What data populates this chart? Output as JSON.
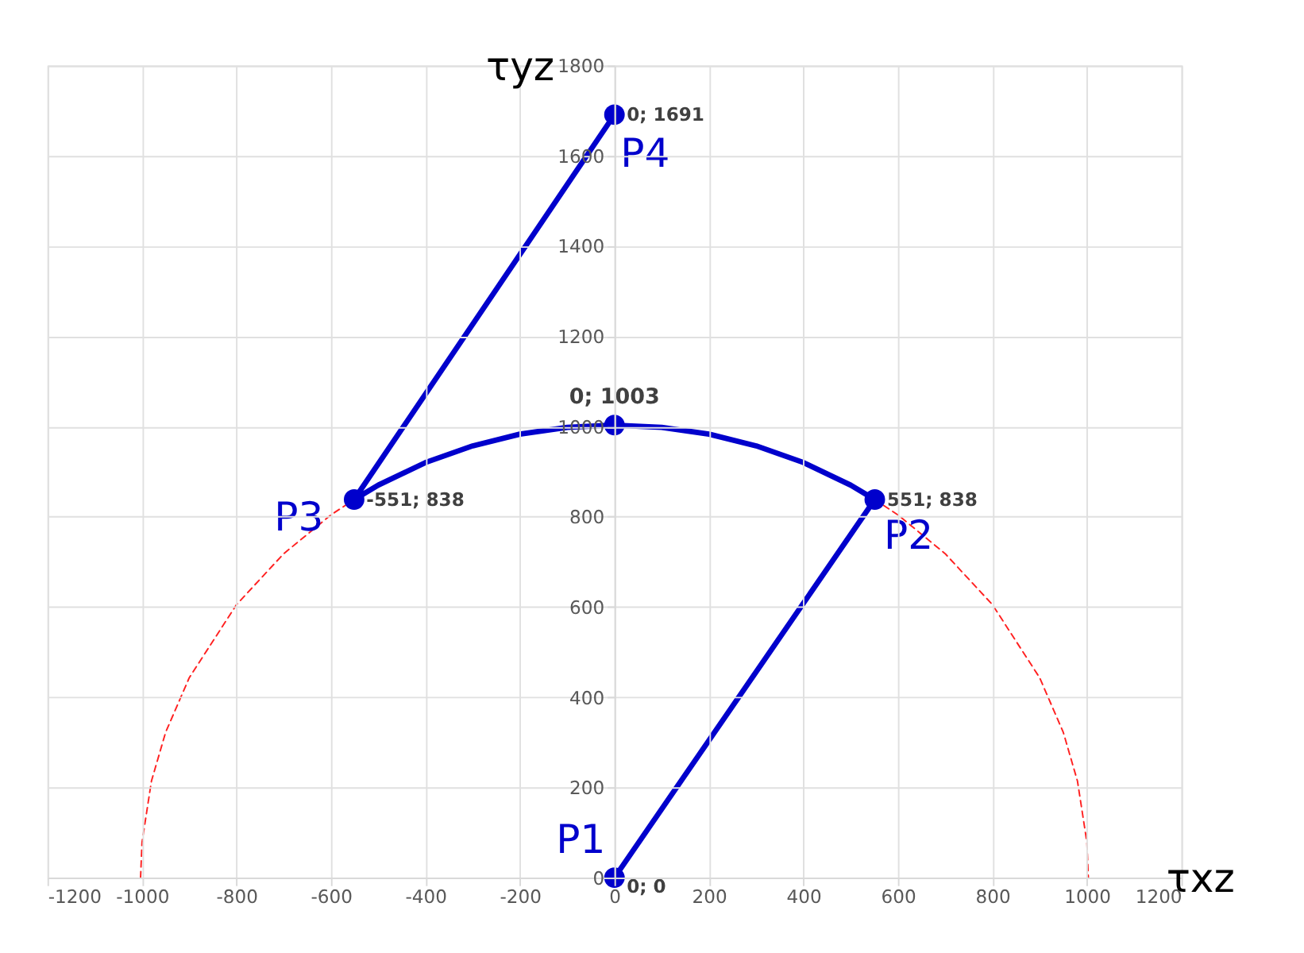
{
  "chart_data": {
    "type": "scatter",
    "xlabel": "τxz",
    "ylabel": "τyz",
    "xlim": [
      -1200,
      1200
    ],
    "ylim": [
      0,
      1800
    ],
    "xticks": [
      -1200,
      -1000,
      -800,
      -600,
      -400,
      -200,
      0,
      200,
      400,
      600,
      800,
      1000,
      1200
    ],
    "yticks": [
      0,
      200,
      400,
      600,
      800,
      1000,
      1200,
      1400,
      1600,
      1800
    ],
    "grid": true,
    "series": [
      {
        "type": "line",
        "line_style": "dashed",
        "color": "#ff2020",
        "x": [
          -1003,
          -1000,
          -980,
          -950,
          -900,
          -800,
          -700,
          -600,
          -551
        ],
        "values": [
          0,
          78,
          214,
          322,
          443,
          605,
          718,
          804,
          838
        ]
      },
      {
        "type": "line",
        "line_style": "dashed",
        "color": "#ff2020",
        "x": [
          551,
          600,
          700,
          800,
          900,
          950,
          980,
          1000,
          1003
        ],
        "values": [
          838,
          804,
          718,
          605,
          443,
          322,
          214,
          78,
          0
        ]
      },
      {
        "type": "line",
        "line_style": "solid",
        "color": "#0000cc",
        "x": [
          0,
          551,
          500,
          400,
          300,
          200,
          100,
          0,
          -100,
          -200,
          -300,
          -400,
          -500,
          -551,
          0
        ],
        "values": [
          0,
          838,
          870,
          920,
          957,
          983,
          998,
          1003,
          998,
          983,
          957,
          920,
          870,
          838,
          1691
        ]
      },
      {
        "marker": "circle",
        "color": "#0000cc",
        "x": [
          0,
          551,
          0,
          -551,
          0
        ],
        "values": [
          0,
          838,
          1003,
          838,
          1691
        ],
        "value_labels": [
          "0; 0",
          "551; 838",
          "0; 1003",
          "-551; 838",
          "0; 1691"
        ]
      }
    ],
    "annotations": [
      {
        "text": "P1",
        "x": 0,
        "y": 0
      },
      {
        "text": "P2",
        "x": 551,
        "y": 838
      },
      {
        "text": "P3",
        "x": -551,
        "y": 838
      },
      {
        "text": "P4",
        "x": 0,
        "y": 1691
      }
    ]
  }
}
